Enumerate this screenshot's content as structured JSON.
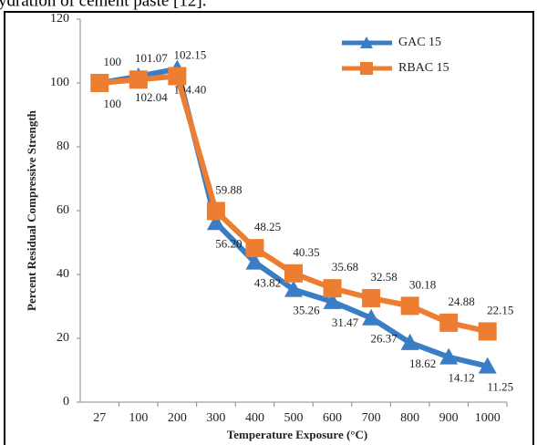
{
  "caption": "ydration of cement paste [12].",
  "chart_data": {
    "type": "line",
    "x_label": "Temperature Exposure (°C)",
    "y_label": "Percent Residual Compressive Strength",
    "categories": [
      "27",
      "100",
      "200",
      "300",
      "400",
      "500",
      "600",
      "700",
      "800",
      "900",
      "1000"
    ],
    "series": [
      {
        "name": "GAC 15",
        "color": "#3b7dc4",
        "marker": "triangle",
        "label_position": "below",
        "values": [
          100,
          102.04,
          104.4,
          56.2,
          43.82,
          35.26,
          31.47,
          26.37,
          18.62,
          14.12,
          11.25
        ],
        "value_labels": [
          "100",
          "102.04",
          "104.40",
          "56.20",
          "43.82",
          "35.26",
          "31.47",
          "26.37",
          "18.62",
          "14.12",
          "11.25"
        ]
      },
      {
        "name": "RBAC 15",
        "color": "#ed7d31",
        "marker": "square",
        "label_position": "above",
        "values": [
          100,
          101.07,
          102.15,
          59.88,
          48.25,
          40.35,
          35.68,
          32.58,
          30.18,
          24.88,
          22.15
        ],
        "value_labels": [
          "100",
          "101.07",
          "102.15",
          "59.88",
          "48.25",
          "40.35",
          "35.68",
          "32.58",
          "30.18",
          "24.88",
          "22.15"
        ]
      }
    ],
    "ylim": [
      0,
      120
    ],
    "yticks": [
      0,
      20,
      40,
      60,
      80,
      100,
      120
    ],
    "grid": false,
    "legend": "top-right"
  }
}
